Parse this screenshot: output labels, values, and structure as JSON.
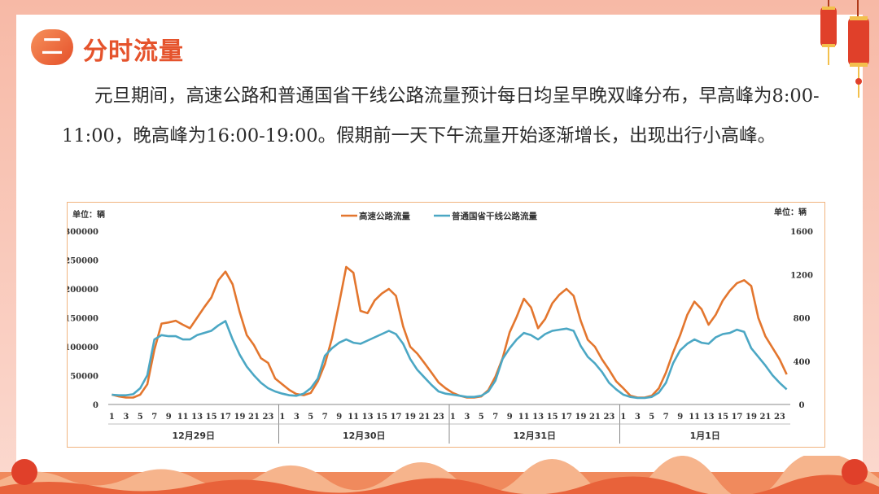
{
  "header": {
    "badge": "二",
    "title": "分时流量"
  },
  "paragraph": "元旦期间，高速公路和普通国省干线公路流量预计每日均呈早晚双峰分布，早高峰为8:00-11:00，晚高峰为16:00-19:00。假期前一天下午流量开始逐渐增长，出现出行小高峰。",
  "colors": {
    "highway": "#e3762e",
    "national": "#4ba7c4",
    "accent": "#e5532c"
  },
  "chart_data": {
    "type": "line",
    "unit_left": "单位：辆",
    "unit_right": "单位：辆",
    "hour_ticks": [
      "1",
      "3",
      "5",
      "7",
      "9",
      "11",
      "13",
      "15",
      "17",
      "19",
      "21",
      "23"
    ],
    "days": [
      "12月29日",
      "12月30日",
      "12月31日",
      "1月1日"
    ],
    "y_left": {
      "min": 0,
      "max": 300000,
      "ticks": [
        "0",
        "50000",
        "100000",
        "150000",
        "200000",
        "250000",
        "300000"
      ]
    },
    "y_right": {
      "min": 0,
      "max": 1600,
      "ticks": [
        "0",
        "400",
        "800",
        "1200",
        "1600"
      ]
    },
    "series": [
      {
        "name": "高速公路流量",
        "axis": "left",
        "values": [
          17000,
          14000,
          12000,
          12000,
          17000,
          35000,
          95000,
          140000,
          142000,
          145000,
          138000,
          132000,
          150000,
          168000,
          185000,
          215000,
          230000,
          208000,
          160000,
          120000,
          103000,
          80000,
          72000,
          45000,
          35000,
          25000,
          18000,
          16000,
          20000,
          40000,
          70000,
          115000,
          175000,
          238000,
          228000,
          162000,
          158000,
          180000,
          192000,
          200000,
          188000,
          135000,
          100000,
          88000,
          72000,
          55000,
          38000,
          28000,
          20000,
          15000,
          12000,
          12000,
          14000,
          25000,
          48000,
          80000,
          125000,
          152000,
          183000,
          168000,
          132000,
          148000,
          175000,
          190000,
          200000,
          188000,
          145000,
          112000,
          100000,
          78000,
          60000,
          40000,
          28000,
          15000,
          12000,
          12000,
          15000,
          28000,
          55000,
          90000,
          120000,
          155000,
          178000,
          165000,
          138000,
          155000,
          180000,
          197000,
          210000,
          215000,
          205000,
          150000,
          118000,
          98000,
          78000,
          52000
        ],
        "total_offset": 0
      },
      {
        "name": "普通国省干线公路流量",
        "axis": "right",
        "values": [
          90,
          85,
          85,
          95,
          150,
          270,
          600,
          640,
          630,
          630,
          600,
          600,
          640,
          660,
          680,
          730,
          770,
          600,
          460,
          350,
          270,
          200,
          150,
          120,
          100,
          85,
          80,
          100,
          150,
          240,
          450,
          520,
          570,
          600,
          570,
          560,
          590,
          620,
          650,
          680,
          650,
          560,
          420,
          320,
          250,
          180,
          120,
          100,
          90,
          80,
          70,
          70,
          80,
          120,
          220,
          420,
          520,
          600,
          660,
          640,
          600,
          650,
          680,
          690,
          700,
          680,
          540,
          440,
          380,
          300,
          200,
          140,
          90,
          70,
          60,
          60,
          70,
          110,
          200,
          380,
          500,
          560,
          600,
          570,
          560,
          620,
          650,
          660,
          690,
          670,
          520,
          440,
          360,
          270,
          200,
          140
        ],
        "total_offset": 0
      }
    ]
  },
  "legend": {
    "highway": "高速公路流量",
    "national": "普通国省干线公路流量"
  }
}
